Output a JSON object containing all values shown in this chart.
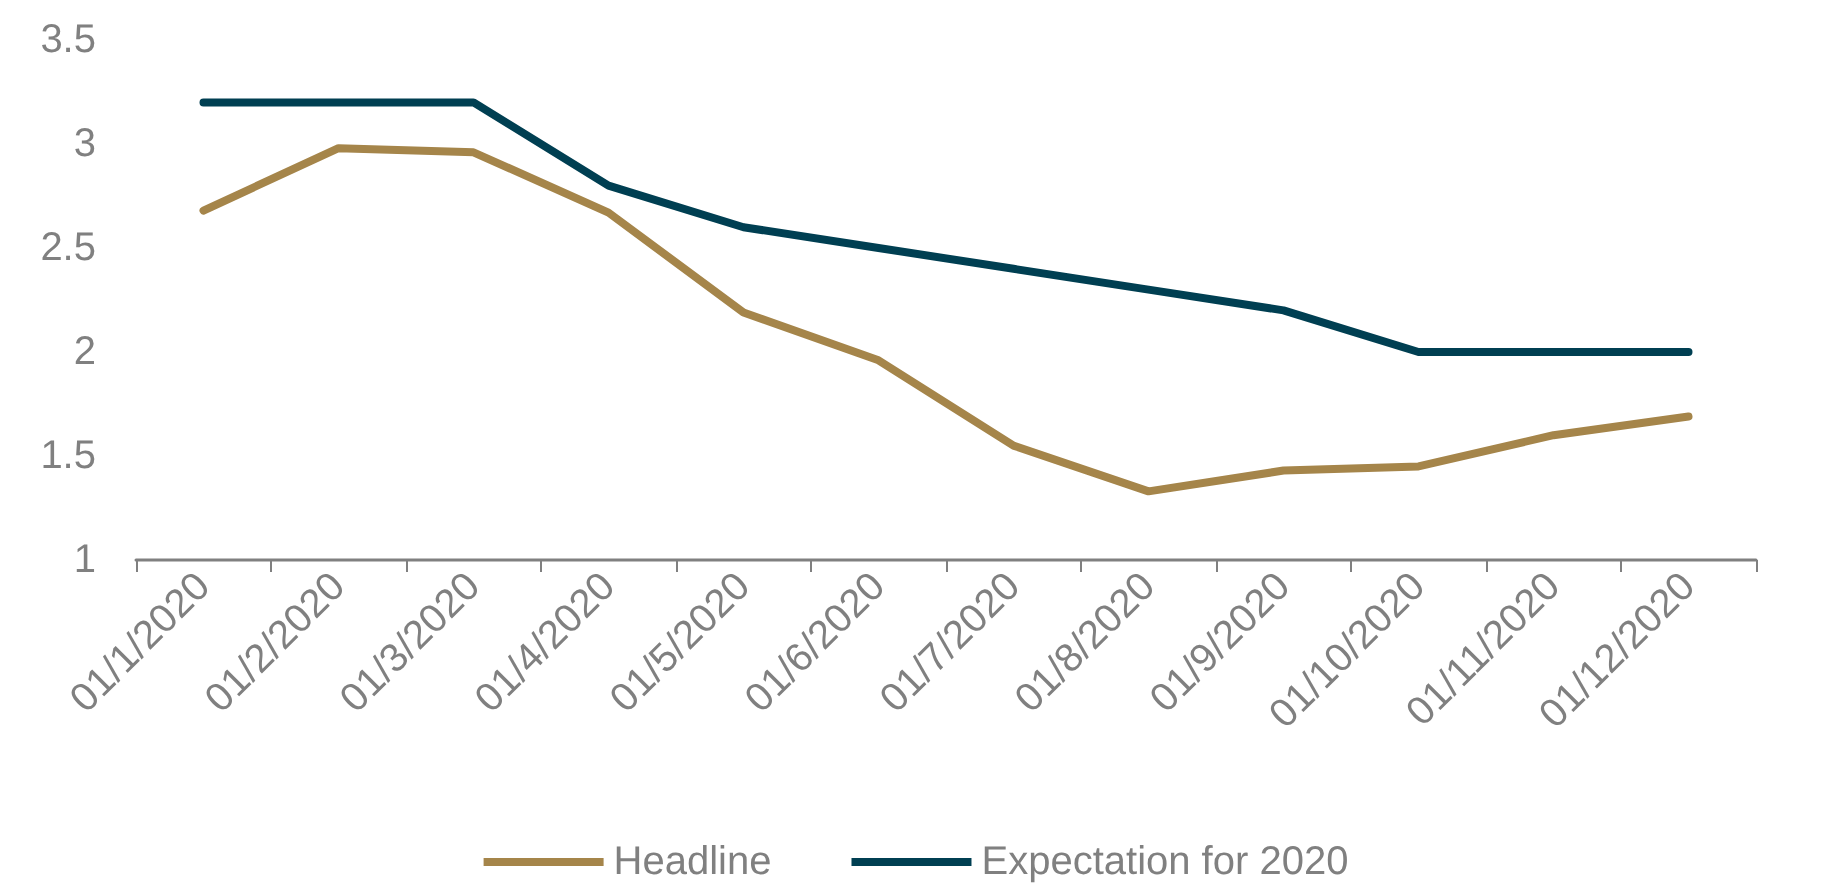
{
  "chart_data": {
    "type": "line",
    "categories": [
      "01/1/2020",
      "01/2/2020",
      "01/3/2020",
      "01/4/2020",
      "01/5/2020",
      "01/6/2020",
      "01/7/2020",
      "01/8/2020",
      "01/9/2020",
      "01/10/2020",
      "01/11/2020",
      "01/12/2020"
    ],
    "series": [
      {
        "name": "Headline",
        "color": "#a5854a",
        "values": [
          2.68,
          2.98,
          2.96,
          2.67,
          2.19,
          1.96,
          1.55,
          1.33,
          1.43,
          1.45,
          1.6,
          1.69
        ]
      },
      {
        "name": "Expectation for 2020",
        "color": "#003f52",
        "values": [
          3.2,
          3.2,
          3.2,
          2.8,
          2.6,
          2.5,
          2.4,
          2.3,
          2.2,
          2.0,
          2.0,
          2.0
        ]
      }
    ],
    "ylim": [
      1,
      3.5
    ],
    "yticks": [
      1,
      1.5,
      2,
      2.5,
      3,
      3.5
    ],
    "grid": false,
    "legend": "bottom",
    "marker": "none",
    "line_style": "solid"
  }
}
